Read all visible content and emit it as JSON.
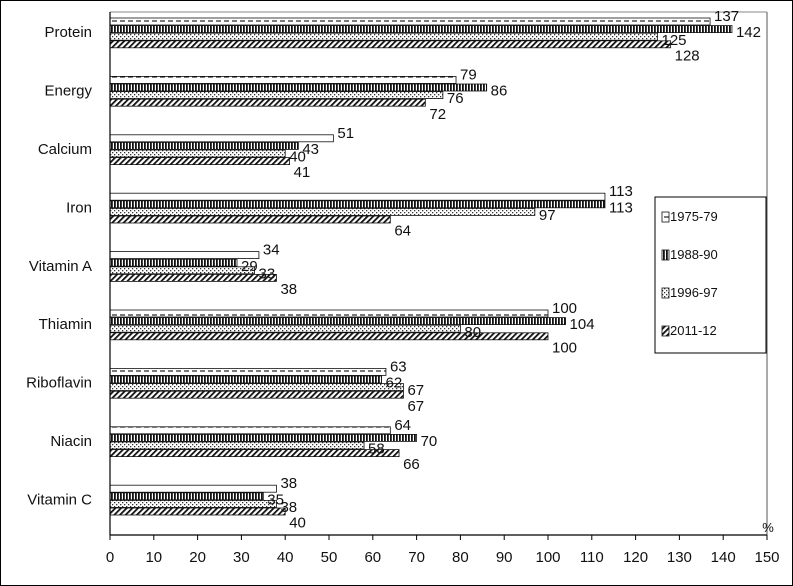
{
  "chart_data": {
    "type": "bar",
    "orientation": "horizontal",
    "categories": [
      "Protein",
      "Energy",
      "Calcium",
      "Iron",
      "Vitamin A",
      "Thiamin",
      "Riboflavin",
      "Niacin",
      "Vitamin C"
    ],
    "series": [
      {
        "name": "1975-79",
        "values": [
          137,
          79,
          51,
          113,
          34,
          100,
          63,
          64,
          38
        ],
        "pattern": "dashed"
      },
      {
        "name": "1988-90",
        "values": [
          142,
          86,
          43,
          113,
          29,
          104,
          62,
          70,
          35
        ],
        "pattern": "vertical-stripes"
      },
      {
        "name": "1996-97",
        "values": [
          125,
          76,
          40,
          97,
          33,
          80,
          67,
          58,
          38
        ],
        "pattern": "dots"
      },
      {
        "name": "2011-12",
        "values": [
          128,
          72,
          41,
          64,
          38,
          100,
          67,
          66,
          40
        ],
        "pattern": "diagonal-hatch"
      }
    ],
    "x_ticks": [
      "0",
      "10",
      "20",
      "30",
      "40",
      "50",
      "60",
      "70",
      "80",
      "90",
      "100",
      "110",
      "120",
      "130",
      "140",
      "150"
    ],
    "xlim": [
      0,
      150
    ],
    "x_unit": "%",
    "legend_position": "right",
    "grid": false
  }
}
